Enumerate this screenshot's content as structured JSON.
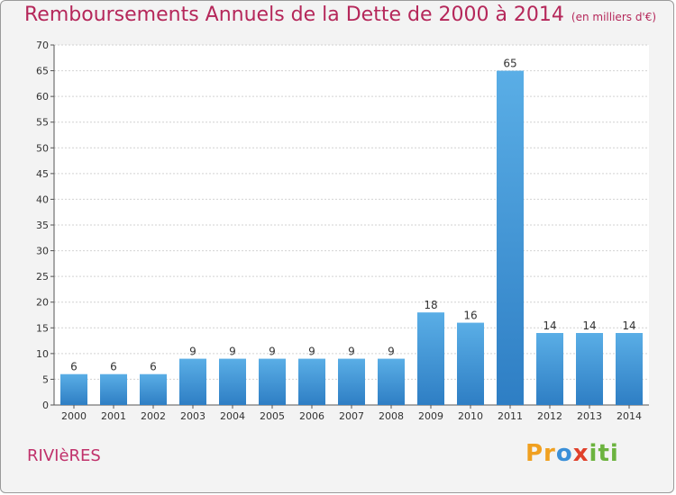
{
  "header": {
    "title": "Remboursements Annuels de la Dette de 2000 à 2014",
    "unit": "(en milliers d'€)"
  },
  "footer": {
    "commune": "RIVIèRES",
    "logo_text": "Proxiti"
  },
  "colors": {
    "bar_top": "#5aaee6",
    "bar_bottom": "#2e7ec4",
    "title": "#b5275a",
    "grid": "#d2d2d2"
  },
  "chart_data": {
    "type": "bar",
    "title": "Remboursements Annuels de la Dette de 2000 à 2014",
    "subtitle": "(en milliers d'€)",
    "xlabel": "",
    "ylabel": "",
    "categories": [
      "2000",
      "2001",
      "2002",
      "2003",
      "2004",
      "2005",
      "2006",
      "2007",
      "2008",
      "2009",
      "2010",
      "2011",
      "2012",
      "2013",
      "2014"
    ],
    "values": [
      6,
      6,
      6,
      9,
      9,
      9,
      9,
      9,
      9,
      18,
      16,
      65,
      14,
      14,
      14
    ],
    "ylim": [
      0,
      70
    ],
    "yticks": [
      0,
      5,
      10,
      15,
      20,
      25,
      30,
      35,
      40,
      45,
      50,
      55,
      60,
      65,
      70
    ],
    "grid": true,
    "data_labels": true
  }
}
